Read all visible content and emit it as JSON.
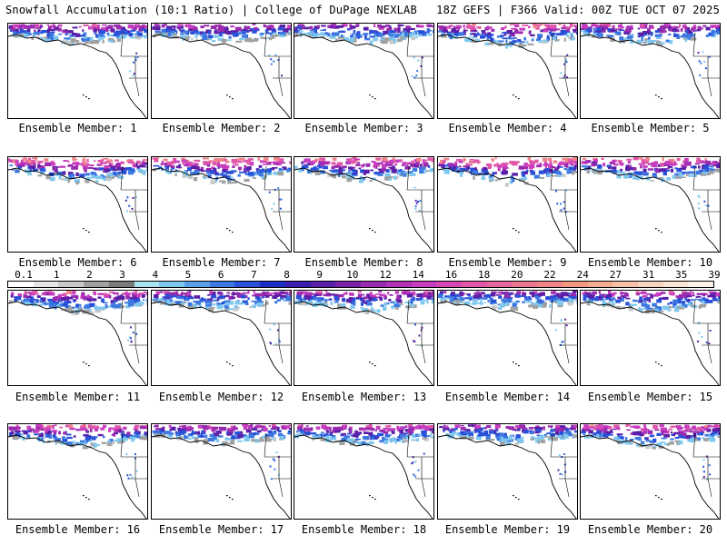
{
  "header": {
    "left": "Snowfall Accumulation (10:1 Ratio) | College of DuPage NEXLAB",
    "right": "18Z GEFS | F366 Valid: 00Z TUE OCT 07 2025"
  },
  "map_legend": {
    "units_note": "",
    "labels": [
      "0.1",
      "1",
      "2",
      "3",
      "4",
      "5",
      "6",
      "7",
      "8",
      "9",
      "10",
      "12",
      "14",
      "16",
      "18",
      "20",
      "22",
      "24",
      "27",
      "31",
      "35",
      "39"
    ],
    "colors": [
      "#ffffff",
      "#e6e6e6",
      "#c8c8c8",
      "#a0a0a0",
      "#7a7a7a",
      "#a8e4f0",
      "#7ec8f0",
      "#5aa0e8",
      "#3c78e0",
      "#2850d8",
      "#1c30c8",
      "#3a1eb0",
      "#5a1ea8",
      "#7a22a8",
      "#9a2ab0",
      "#b432b8",
      "#c83cc0",
      "#d848b4",
      "#e056a8",
      "#e8649c",
      "#ec7490",
      "#f08488",
      "#f49880",
      "#f4ac90",
      "#f6c0a8",
      "#f8d4c0",
      "#fae4d4",
      "#fcf2e8"
    ]
  },
  "members": [
    {
      "caption": "Ensemble Member: 1",
      "intensity": 0.6
    },
    {
      "caption": "Ensemble Member: 2",
      "intensity": 0.55
    },
    {
      "caption": "Ensemble Member: 3",
      "intensity": 0.55
    },
    {
      "caption": "Ensemble Member: 4",
      "intensity": 0.7
    },
    {
      "caption": "Ensemble Member: 5",
      "intensity": 0.6
    },
    {
      "caption": "Ensemble Member: 6",
      "intensity": 0.8
    },
    {
      "caption": "Ensemble Member: 7",
      "intensity": 0.8
    },
    {
      "caption": "Ensemble Member: 8",
      "intensity": 0.75
    },
    {
      "caption": "Ensemble Member: 9",
      "intensity": 0.85
    },
    {
      "caption": "Ensemble Member: 10",
      "intensity": 0.75
    },
    {
      "caption": "Ensemble Member: 11",
      "intensity": 0.65
    },
    {
      "caption": "Ensemble Member: 12",
      "intensity": 0.55
    },
    {
      "caption": "Ensemble Member: 13",
      "intensity": 0.6
    },
    {
      "caption": "Ensemble Member: 14",
      "intensity": 0.5
    },
    {
      "caption": "Ensemble Member: 15",
      "intensity": 0.6
    },
    {
      "caption": "Ensemble Member: 16",
      "intensity": 0.7
    },
    {
      "caption": "Ensemble Member: 17",
      "intensity": 0.6
    },
    {
      "caption": "Ensemble Member: 18",
      "intensity": 0.65
    },
    {
      "caption": "Ensemble Member: 19",
      "intensity": 0.55
    },
    {
      "caption": "Ensemble Member: 20",
      "intensity": 0.7
    }
  ]
}
